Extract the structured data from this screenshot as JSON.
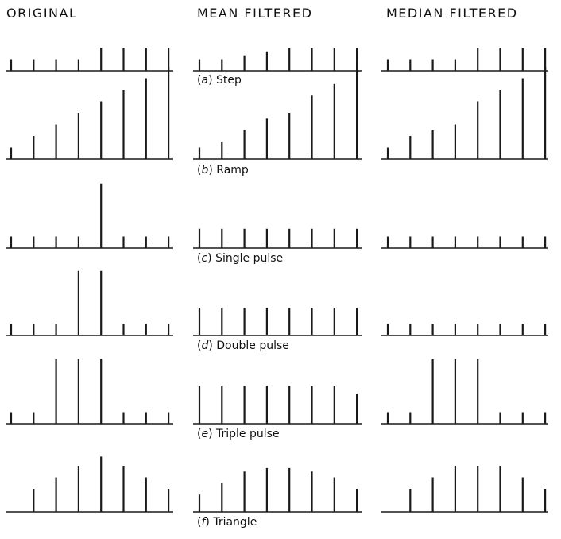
{
  "columns": [
    "ORIGINAL",
    "MEAN FILTERED",
    "MEDIAN FILTERED"
  ],
  "rows": [
    {
      "letter": "a",
      "name": "Step",
      "original": [
        1,
        1,
        1,
        1,
        2,
        2,
        2,
        2
      ],
      "mean": [
        1,
        1,
        1.33,
        1.67,
        2,
        2,
        2,
        2
      ],
      "median": [
        1,
        1,
        1,
        1,
        2,
        2,
        2,
        2
      ]
    },
    {
      "letter": "b",
      "name": "Ramp",
      "original": [
        1,
        2,
        3,
        4,
        5,
        6,
        7,
        8
      ],
      "mean": [
        1,
        1.5,
        2.5,
        3.5,
        4.0,
        5.5,
        6.5,
        8.5
      ],
      "median": [
        1,
        2,
        2.5,
        3,
        5,
        6,
        7,
        8
      ]
    },
    {
      "letter": "c",
      "name": "Single pulse",
      "original": [
        1,
        1,
        1,
        1,
        5.6,
        1,
        1,
        1
      ],
      "mean": [
        1.67,
        1.67,
        1.67,
        1.67,
        1.67,
        1.67,
        1.67,
        1.67
      ],
      "median": [
        1,
        1,
        1,
        1,
        1,
        1,
        1,
        1
      ]
    },
    {
      "letter": "d",
      "name": "Double pulse",
      "original": [
        1,
        1,
        1,
        5.6,
        5.6,
        1,
        1,
        1
      ],
      "mean": [
        2.4,
        2.4,
        2.4,
        2.4,
        2.4,
        2.4,
        2.4,
        2.4
      ],
      "median": [
        1,
        1,
        1,
        1,
        1,
        1,
        1,
        1
      ]
    },
    {
      "letter": "e",
      "name": "Triple pulse",
      "original": [
        1,
        1,
        5.6,
        5.6,
        5.6,
        1,
        1,
        1
      ],
      "mean": [
        3.3,
        3.3,
        3.3,
        3.3,
        3.3,
        3.3,
        3.3,
        2.6
      ],
      "median": [
        1,
        1,
        5.6,
        5.6,
        5.6,
        1,
        1,
        1
      ]
    },
    {
      "letter": "f",
      "name": "Triangle",
      "original": [
        0,
        2,
        3,
        4,
        4.8,
        4,
        3,
        2
      ],
      "mean": [
        1.5,
        2.5,
        3.5,
        3.8,
        3.8,
        3.5,
        3.0,
        2.0
      ],
      "median": [
        0,
        2,
        3,
        4,
        4,
        4,
        3,
        2
      ]
    }
  ]
}
